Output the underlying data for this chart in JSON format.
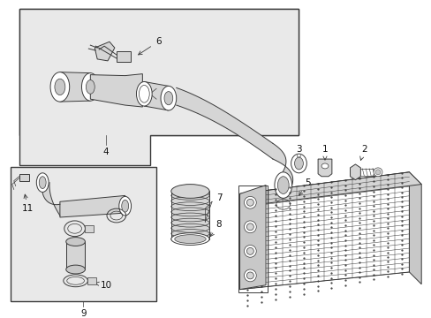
{
  "bg_color": "#ffffff",
  "box1_bg": "#e8e8e8",
  "box2_bg": "#e8e8e8",
  "gray": "#3a3a3a",
  "light_gray": "#c8c8c8",
  "mid_gray": "#d5d5d5"
}
